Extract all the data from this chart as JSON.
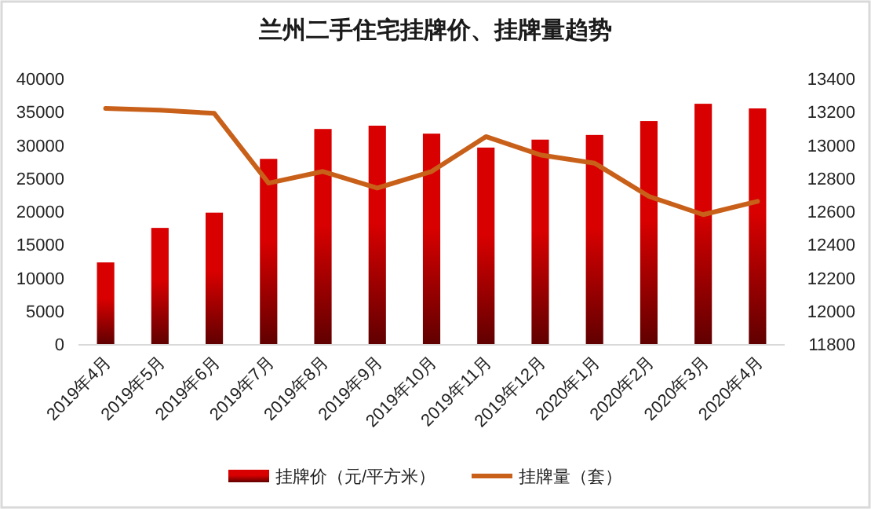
{
  "chart_data": {
    "type": "bar",
    "title": "兰州二手住宅挂牌价、挂牌量趋势",
    "categories": [
      "2019年4月",
      "2019年5月",
      "2019年6月",
      "2019年7月",
      "2019年8月",
      "2019年9月",
      "2019年10月",
      "2019年11月",
      "2019年12月",
      "2020年1月",
      "2020年2月",
      "2020年3月",
      "2020年4月"
    ],
    "series": [
      {
        "name": "挂牌价（元/平方米）",
        "color": "#d80000",
        "values": [
          12300,
          17500,
          19800,
          27900,
          32400,
          32900,
          31700,
          29600,
          30800,
          31500,
          33600,
          36200,
          35500
        ]
      },
      {
        "name": "挂牌量（套）",
        "type": "line",
        "axis": "y2",
        "color": "#c8601a",
        "values": [
          13220,
          13210,
          13190,
          12770,
          12840,
          12740,
          12840,
          13050,
          12940,
          12890,
          12690,
          12580,
          12660
        ]
      }
    ],
    "ylim": [
      0,
      40000
    ],
    "yticks": [
      0,
      5000,
      10000,
      15000,
      20000,
      25000,
      30000,
      35000,
      40000
    ],
    "y2lim": [
      11800,
      13400
    ],
    "y2ticks": [
      11800,
      12000,
      12200,
      12400,
      12600,
      12800,
      13000,
      13200,
      13400
    ],
    "grid": false,
    "legend": "bottom",
    "marker": "none",
    "line_style": "solid"
  }
}
